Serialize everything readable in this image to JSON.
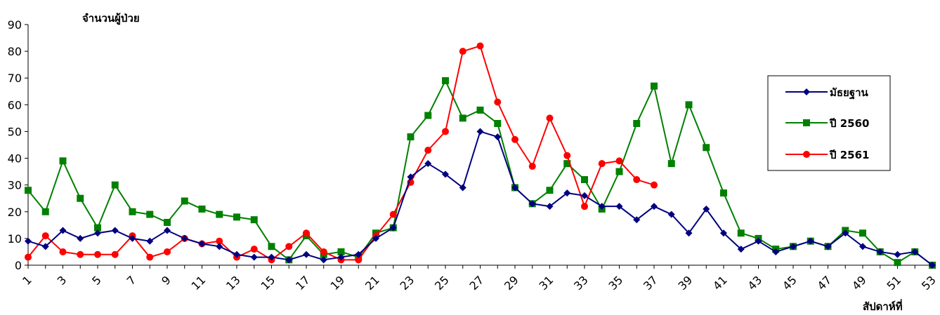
{
  "chart_data": {
    "type": "line",
    "ylabel": "จำนวนผู้ป่วย",
    "xlabel": "สัปดาห์ที่",
    "ylim": [
      0,
      90
    ],
    "y_ticks": [
      0,
      10,
      20,
      30,
      40,
      50,
      60,
      70,
      80,
      90
    ],
    "x_range": [
      1,
      53
    ],
    "x_tick_labels": [
      "1",
      "3",
      "5",
      "7",
      "9",
      "11",
      "13",
      "15",
      "17",
      "19",
      "21",
      "23",
      "25",
      "27",
      "29",
      "31",
      "33",
      "35",
      "37",
      "39",
      "41",
      "43",
      "45",
      "47",
      "49",
      "51",
      "53"
    ],
    "grid": false,
    "legend_position": "right",
    "series": [
      {
        "name": "มัธยฐาน",
        "color": "#000080",
        "marker": "diamond",
        "values": [
          9,
          7,
          13,
          10,
          12,
          13,
          10,
          9,
          13,
          10,
          8,
          7,
          4,
          3,
          3,
          2,
          4,
          2,
          3,
          4,
          10,
          14,
          33,
          38,
          34,
          29,
          50,
          48,
          29,
          23,
          22,
          27,
          26,
          22,
          22,
          17,
          22,
          19,
          12,
          21,
          12,
          6,
          9,
          5,
          7,
          9,
          7,
          12,
          7,
          5,
          4,
          5,
          0
        ]
      },
      {
        "name": "ปี 2560",
        "color": "#008000",
        "marker": "square",
        "values": [
          28,
          20,
          39,
          25,
          14,
          30,
          20,
          19,
          16,
          24,
          21,
          19,
          18,
          17,
          7,
          2,
          11,
          4,
          5,
          3,
          12,
          14,
          48,
          56,
          69,
          55,
          58,
          53,
          29,
          23,
          28,
          38,
          32,
          21,
          35,
          53,
          67,
          38,
          60,
          44,
          27,
          12,
          10,
          6,
          7,
          9,
          7,
          13,
          12,
          5,
          1,
          5,
          0
        ]
      },
      {
        "name": "ปี 2561",
        "color": "#ff0000",
        "marker": "circle",
        "values": [
          3,
          11,
          5,
          4,
          4,
          4,
          11,
          3,
          5,
          10,
          8,
          9,
          3,
          6,
          2,
          7,
          12,
          5,
          2,
          2,
          11,
          19,
          31,
          43,
          50,
          80,
          82,
          61,
          47,
          37,
          55,
          41,
          22,
          38,
          39,
          32,
          30
        ]
      }
    ]
  }
}
